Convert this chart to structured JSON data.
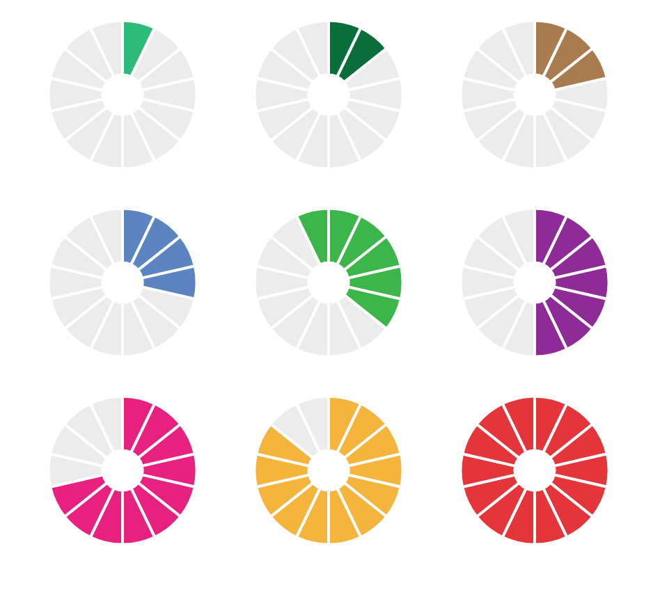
{
  "chart_data": [
    {
      "type": "donut",
      "categories": [
        null,
        null,
        null,
        null,
        null,
        null,
        null,
        null,
        null,
        null,
        null,
        null,
        null,
        null
      ],
      "values": [
        7.14,
        7.14,
        7.14,
        7.14,
        7.14,
        7.14,
        7.14,
        7.14,
        7.14,
        7.14,
        7.14,
        7.14,
        7.14,
        7.14
      ],
      "colors": [
        "#2dbb7a",
        "#ececec",
        "#ececec",
        "#ececec",
        "#ececec",
        "#ececec",
        "#ececec",
        "#ececec",
        "#ececec",
        "#ececec",
        "#ececec",
        "#ececec",
        "#ececec",
        "#ececec"
      ]
    },
    {
      "type": "donut",
      "categories": [
        null,
        null,
        null,
        null,
        null,
        null,
        null,
        null,
        null,
        null,
        null,
        null,
        null,
        null
      ],
      "values": [
        7.14,
        7.14,
        7.14,
        7.14,
        7.14,
        7.14,
        7.14,
        7.14,
        7.14,
        7.14,
        7.14,
        7.14,
        7.14,
        7.14
      ],
      "colors": [
        "#0a6e3a",
        "#0a6e3a",
        "#ececec",
        "#ececec",
        "#ececec",
        "#ececec",
        "#ececec",
        "#ececec",
        "#ececec",
        "#ececec",
        "#ececec",
        "#ececec",
        "#ececec",
        "#ececec"
      ]
    },
    {
      "type": "donut",
      "categories": [
        null,
        null,
        null,
        null,
        null,
        null,
        null,
        null,
        null,
        null,
        null,
        null,
        null,
        null
      ],
      "values": [
        7.14,
        7.14,
        7.14,
        7.14,
        7.14,
        7.14,
        7.14,
        7.14,
        7.14,
        7.14,
        7.14,
        7.14,
        7.14,
        7.14
      ],
      "colors": [
        "#a97c50",
        "#a97c50",
        "#a97c50",
        "#ececec",
        "#ececec",
        "#ececec",
        "#ececec",
        "#ececec",
        "#ececec",
        "#ececec",
        "#ececec",
        "#ececec",
        "#ececec",
        "#ececec"
      ]
    },
    {
      "type": "donut",
      "categories": [
        null,
        null,
        null,
        null,
        null,
        null,
        null,
        null,
        null,
        null,
        null,
        null,
        null,
        null
      ],
      "values": [
        7.14,
        7.14,
        7.14,
        7.14,
        7.14,
        7.14,
        7.14,
        7.14,
        7.14,
        7.14,
        7.14,
        7.14,
        7.14,
        7.14
      ],
      "colors": [
        "#5b84c0",
        "#5b84c0",
        "#5b84c0",
        "#5b84c0",
        "#ececec",
        "#ececec",
        "#ececec",
        "#ececec",
        "#ececec",
        "#ececec",
        "#ececec",
        "#ececec",
        "#ececec",
        "#ececec"
      ]
    },
    {
      "type": "donut",
      "categories": [
        null,
        null,
        null,
        null,
        null,
        null,
        null,
        null,
        null,
        null,
        null,
        null,
        null,
        null
      ],
      "values": [
        7.14,
        7.14,
        7.14,
        7.14,
        7.14,
        7.14,
        7.14,
        7.14,
        7.14,
        7.14,
        7.14,
        7.14,
        7.14,
        7.14
      ],
      "colors": [
        "#3cb64a",
        "#3cb64a",
        "#3cb64a",
        "#3cb64a",
        "#3cb64a",
        "#ececec",
        "#ececec",
        "#ececec",
        "#ececec",
        "#ececec",
        "#ececec",
        "#ececec",
        "#ececec",
        "#3cb64a"
      ]
    },
    {
      "type": "donut",
      "categories": [
        null,
        null,
        null,
        null,
        null,
        null,
        null,
        null,
        null,
        null,
        null,
        null,
        null,
        null
      ],
      "values": [
        7.14,
        7.14,
        7.14,
        7.14,
        7.14,
        7.14,
        7.14,
        7.14,
        7.14,
        7.14,
        7.14,
        7.14,
        7.14,
        7.14
      ],
      "colors": [
        "#8e2b96",
        "#8e2b96",
        "#8e2b96",
        "#8e2b96",
        "#8e2b96",
        "#8e2b96",
        "#8e2b96",
        "#ececec",
        "#ececec",
        "#ececec",
        "#ececec",
        "#ececec",
        "#ececec",
        "#ececec"
      ]
    },
    {
      "type": "donut",
      "categories": [
        null,
        null,
        null,
        null,
        null,
        null,
        null,
        null,
        null,
        null,
        null,
        null,
        null,
        null
      ],
      "values": [
        7.14,
        7.14,
        7.14,
        7.14,
        7.14,
        7.14,
        7.14,
        7.14,
        7.14,
        7.14,
        7.14,
        7.14,
        7.14,
        7.14
      ],
      "colors": [
        "#e8207f",
        "#e8207f",
        "#e8207f",
        "#e8207f",
        "#e8207f",
        "#e8207f",
        "#e8207f",
        "#e8207f",
        "#e8207f",
        "#e8207f",
        "#ececec",
        "#ececec",
        "#ececec",
        "#ececec"
      ]
    },
    {
      "type": "donut",
      "categories": [
        null,
        null,
        null,
        null,
        null,
        null,
        null,
        null,
        null,
        null,
        null,
        null,
        null,
        null
      ],
      "values": [
        7.14,
        7.14,
        7.14,
        7.14,
        7.14,
        7.14,
        7.14,
        7.14,
        7.14,
        7.14,
        7.14,
        7.14,
        7.14,
        7.14
      ],
      "colors": [
        "#f5b53c",
        "#f5b53c",
        "#f5b53c",
        "#f5b53c",
        "#f5b53c",
        "#f5b53c",
        "#f5b53c",
        "#f5b53c",
        "#f5b53c",
        "#f5b53c",
        "#f5b53c",
        "#f5b53c",
        "#ececec",
        "#ececec"
      ]
    },
    {
      "type": "donut",
      "categories": [
        null,
        null,
        null,
        null,
        null,
        null,
        null,
        null,
        null,
        null,
        null,
        null,
        null,
        null
      ],
      "values": [
        7.14,
        7.14,
        7.14,
        7.14,
        7.14,
        7.14,
        7.14,
        7.14,
        7.14,
        7.14,
        7.14,
        7.14,
        7.14,
        7.14
      ],
      "colors": [
        "#e3353a",
        "#e3353a",
        "#e3353a",
        "#e3353a",
        "#e3353a",
        "#e3353a",
        "#e3353a",
        "#e3353a",
        "#e3353a",
        "#e3353a",
        "#e3353a",
        "#e3353a",
        "#e3353a",
        "#e3353a"
      ]
    }
  ]
}
